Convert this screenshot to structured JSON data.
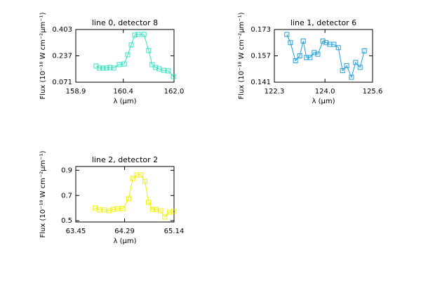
{
  "chart_data": [
    {
      "type": "line",
      "title": "line 0, detector 8",
      "xlabel": "λ (μm)",
      "ylabel": "Flux (10⁻¹⁸ W cm⁻²μm⁻¹)",
      "color": "#33e0c0",
      "marker": "square",
      "x": [
        159.54,
        159.65,
        159.76,
        159.87,
        159.98,
        160.1,
        160.27,
        160.43,
        160.54,
        160.65,
        160.76,
        160.87,
        161.05,
        161.2,
        161.31,
        161.42,
        161.53,
        161.67,
        161.82,
        161.98
      ],
      "values": [
        0.173,
        0.16,
        0.16,
        0.16,
        0.164,
        0.16,
        0.182,
        0.186,
        0.244,
        0.306,
        0.368,
        0.372,
        0.372,
        0.27,
        0.182,
        0.164,
        0.155,
        0.146,
        0.142,
        0.106
      ],
      "xlim": [
        158.9,
        162.0
      ],
      "xticks": [
        158.9,
        160.4,
        {
          "value": 162,
          "label": "162.0"
        }
      ],
      "ylim": [
        0.071,
        0.403
      ],
      "yticks": [
        0.071,
        0.237,
        0.403
      ]
    },
    {
      "type": "line",
      "title": "line 1, detector 6",
      "xlabel": "λ (μm)",
      "ylabel": "Flux (10⁻¹⁸ W cm⁻²μm⁻¹)",
      "color": "#1fa0d8",
      "marker": "square",
      "x": [
        122.72,
        122.84,
        123.01,
        123.15,
        123.27,
        123.38,
        123.5,
        123.64,
        123.76,
        123.93,
        124.04,
        124.16,
        124.3,
        124.45,
        124.59,
        124.73,
        124.89,
        125.03,
        125.18,
        125.32
      ],
      "values": [
        0.17,
        0.165,
        0.154,
        0.157,
        0.166,
        0.156,
        0.156,
        0.159,
        0.158,
        0.166,
        0.165,
        0.164,
        0.164,
        0.162,
        0.148,
        0.151,
        0.144,
        0.153,
        0.15,
        0.16
      ],
      "xlim": [
        122.3,
        125.6
      ],
      "xticks": [
        122.3,
        {
          "value": 124,
          "label": "124.0"
        },
        125.6
      ],
      "ylim": [
        0.141,
        0.173
      ],
      "yticks": [
        0.141,
        0.157,
        0.173
      ]
    },
    {
      "type": "line",
      "title": "line 2, detector 2",
      "xlabel": "λ (μm)",
      "ylabel": "Flux (10⁻¹⁸ W cm⁻²μm⁻¹)",
      "color": "#f0f000",
      "marker": "square",
      "x": [
        63.78,
        63.86,
        63.94,
        64.03,
        64.09,
        64.17,
        64.26,
        64.36,
        64.43,
        64.5,
        64.57,
        64.64,
        64.7,
        64.77,
        64.83,
        64.91,
        64.98,
        65.06,
        65.13
      ],
      "values": [
        0.601,
        0.585,
        0.585,
        0.579,
        0.59,
        0.596,
        0.596,
        0.674,
        0.835,
        0.863,
        0.863,
        0.813,
        0.646,
        0.59,
        0.59,
        0.579,
        0.529,
        0.568,
        0.574
      ],
      "xlim": [
        63.45,
        65.14
      ],
      "xticks": [
        63.45,
        64.29,
        65.14
      ],
      "ylim": [
        0.49,
        0.93
      ],
      "yticks": [
        0.5,
        0.7,
        0.9
      ]
    }
  ]
}
